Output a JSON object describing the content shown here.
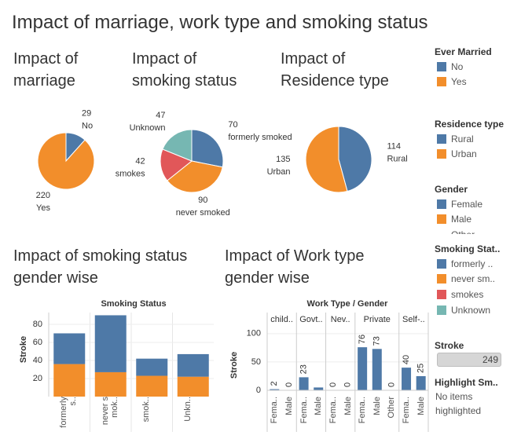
{
  "title": "Impact of marriage, work type and smoking status",
  "chart_data": [
    {
      "type": "pie",
      "title": "Impact of marriage",
      "categories": [
        "No",
        "Yes"
      ],
      "values": [
        29,
        220
      ],
      "colors": [
        "#4e79a7",
        "#f28e2b"
      ]
    },
    {
      "type": "pie",
      "title": "Impact of smoking status",
      "categories": [
        "formerly smoked",
        "never smoked",
        "smokes",
        "Unknown"
      ],
      "values": [
        70,
        90,
        42,
        47
      ],
      "colors": [
        "#4e79a7",
        "#f28e2b",
        "#e15759",
        "#76b7b2"
      ]
    },
    {
      "type": "pie",
      "title": "Impact of Residence type",
      "categories": [
        "Rural",
        "Urban"
      ],
      "values": [
        114,
        135
      ],
      "colors": [
        "#4e79a7",
        "#f28e2b"
      ]
    },
    {
      "type": "stacked_bar",
      "title": "Impact of smoking status gender wise",
      "header": "Smoking Status",
      "y_label": "Stroke",
      "categories": [
        "formerly s..",
        "never smok..",
        "smok..",
        "Unkn.."
      ],
      "series": [
        {
          "name": "Female",
          "color": "#4e79a7",
          "values": [
            34,
            63,
            19,
            25
          ]
        },
        {
          "name": "Male",
          "color": "#f28e2b",
          "values": [
            36,
            27,
            23,
            22
          ]
        }
      ],
      "ylim": [
        0,
        93
      ],
      "yticks": [
        20,
        40,
        60,
        80
      ],
      "grid": true
    },
    {
      "type": "grouped_bar",
      "title": "Impact of Work type gender wise",
      "header": "Work Type / Gender",
      "y_label": "Stroke",
      "color": "#4e79a7",
      "groups": [
        {
          "name": "child..",
          "categories": [
            "Fema..",
            "Male"
          ],
          "values": [
            2,
            0
          ]
        },
        {
          "name": "Govt..",
          "categories": [
            "Fema..",
            "Male"
          ],
          "values": [
            23,
            5
          ],
          "value_labels": [
            "23",
            null
          ]
        },
        {
          "name": "Nev..",
          "categories": [
            "Fema..",
            "Male"
          ],
          "values": [
            0,
            0
          ]
        },
        {
          "name": "Private",
          "categories": [
            "Fema..",
            "Male",
            "Other"
          ],
          "values": [
            76,
            73,
            0
          ]
        },
        {
          "name": "Self-..",
          "categories": [
            "Fema..",
            "Male"
          ],
          "values": [
            40,
            25
          ]
        }
      ],
      "ylim": [
        0,
        115
      ],
      "yticks": [
        0,
        50,
        100
      ],
      "grid": true
    }
  ],
  "legends": [
    {
      "title": "Ever Married",
      "items": [
        {
          "label": "No",
          "color": "#4e79a7"
        },
        {
          "label": "Yes",
          "color": "#f28e2b"
        }
      ]
    },
    {
      "title": "Residence type",
      "items": [
        {
          "label": "Rural",
          "color": "#4e79a7"
        },
        {
          "label": "Urban",
          "color": "#f28e2b"
        }
      ]
    },
    {
      "title": "Gender",
      "items": [
        {
          "label": "Female",
          "color": "#4e79a7"
        },
        {
          "label": "Male",
          "color": "#f28e2b"
        },
        {
          "label": "Other"
        }
      ]
    },
    {
      "title": "Smoking Stat..",
      "items": [
        {
          "label": "formerly ..",
          "color": "#4e79a7"
        },
        {
          "label": "never sm..",
          "color": "#f28e2b"
        },
        {
          "label": "smokes",
          "color": "#e15759"
        },
        {
          "label": "Unknown",
          "color": "#76b7b2"
        }
      ]
    }
  ],
  "stroke_filter": {
    "title": "Stroke",
    "value": 249
  },
  "highlighter": {
    "title": "Highlight Sm..",
    "text": "No items highlighted"
  }
}
